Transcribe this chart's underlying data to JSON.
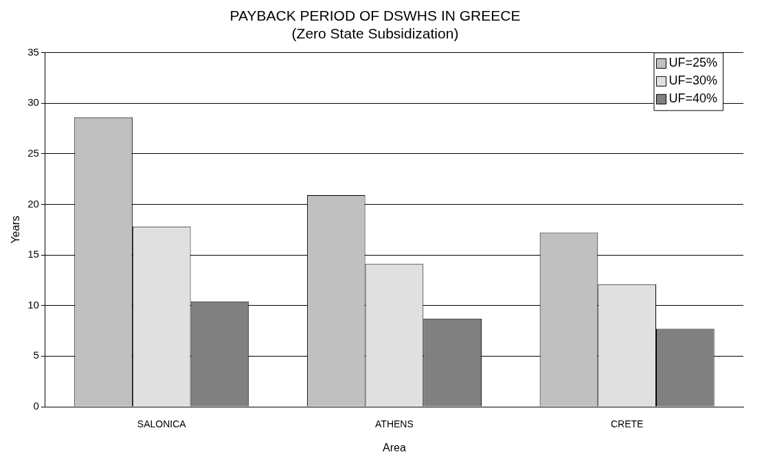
{
  "chart_data": {
    "type": "bar",
    "title": "PAYBACK PERIOD OF DSWHS IN GREECE",
    "subtitle": "(Zero State Subsidization)",
    "xlabel": "Area",
    "ylabel": "Years",
    "categories": [
      "SALONICA",
      "ATHENS",
      "CRETE"
    ],
    "series": [
      {
        "name": "UF=25%",
        "color": "#c0c0c0",
        "values": [
          28.6,
          20.9,
          17.2
        ]
      },
      {
        "name": "UF=30%",
        "color": "#e0e0e0",
        "values": [
          17.8,
          14.1,
          12.1
        ]
      },
      {
        "name": "UF=40%",
        "color": "#808080",
        "values": [
          10.4,
          8.7,
          7.7
        ]
      }
    ],
    "ylim": [
      0,
      35
    ],
    "yticks": [
      0,
      5,
      10,
      15,
      20,
      25,
      30,
      35
    ],
    "grid": "y",
    "legend": "top right"
  }
}
